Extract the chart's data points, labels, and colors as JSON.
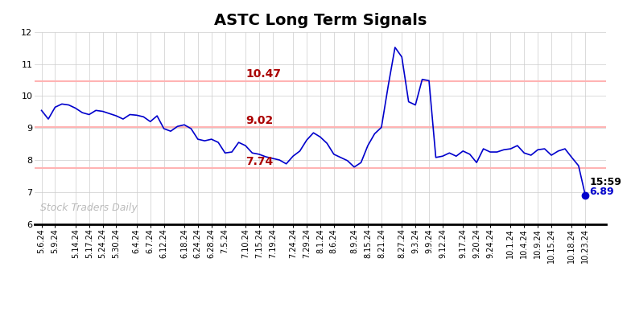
{
  "title": "ASTC Long Term Signals",
  "title_fontsize": 14,
  "title_fontweight": "bold",
  "line_color": "#0000cc",
  "background_color": "#ffffff",
  "grid_color": "#cccccc",
  "hline_color": "#ffb3b3",
  "hline_values": [
    7.74,
    9.02,
    10.47
  ],
  "hline_label_color": "#aa0000",
  "hline_label_fontsize": 10,
  "hline_label_fontweight": "bold",
  "annotation_time": "15:59",
  "annotation_value": "6.89",
  "annotation_color_time": "#000000",
  "annotation_color_value": "#0000cc",
  "annotation_fontsize": 9,
  "annotation_fontweight": "bold",
  "watermark_text": "Stock Traders Daily",
  "watermark_color": "#aaaaaa",
  "watermark_fontsize": 9,
  "ylim": [
    6,
    12
  ],
  "yticks": [
    6,
    7,
    8,
    9,
    10,
    11,
    12
  ],
  "dot_color": "#0000cc",
  "dot_size": 6,
  "x_labels": [
    "5.6.24",
    "5.9.24",
    "5.14.24",
    "5.17.24",
    "5.24.24",
    "5.30.24",
    "6.4.24",
    "6.7.24",
    "6.12.24",
    "6.18.24",
    "6.24.24",
    "6.28.24",
    "7.5.24",
    "7.10.24",
    "7.15.24",
    "7.19.24",
    "7.24.24",
    "7.29.24",
    "8.1.24",
    "8.6.24",
    "8.9.24",
    "8.15.24",
    "8.21.24",
    "8.27.24",
    "9.3.24",
    "9.9.24",
    "9.12.24",
    "9.17.24",
    "9.20.24",
    "9.24.24",
    "10.1.24",
    "10.4.24",
    "10.9.24",
    "10.15.24",
    "10.18.24",
    "10.23.24"
  ],
  "prices": [
    9.55,
    9.28,
    9.65,
    9.75,
    9.72,
    9.62,
    9.48,
    9.42,
    9.55,
    9.52,
    9.45,
    9.38,
    9.28,
    9.42,
    9.4,
    9.35,
    9.2,
    9.38,
    8.98,
    8.9,
    9.05,
    9.1,
    8.98,
    8.65,
    8.6,
    8.65,
    8.55,
    8.22,
    8.25,
    8.55,
    8.45,
    8.22,
    8.18,
    8.1,
    8.05,
    8.0,
    7.88,
    8.12,
    8.28,
    8.62,
    8.85,
    8.72,
    8.52,
    8.18,
    8.08,
    7.98,
    7.78,
    7.92,
    8.45,
    8.82,
    9.02,
    10.32,
    11.52,
    11.22,
    9.82,
    9.72,
    10.52,
    10.48,
    8.08,
    8.12,
    8.22,
    8.12,
    8.28,
    8.18,
    7.92,
    8.35,
    8.25,
    8.25,
    8.32,
    8.35,
    8.45,
    8.22,
    8.15,
    8.32,
    8.35,
    8.15,
    8.28,
    8.35,
    8.08,
    7.82,
    6.89
  ]
}
